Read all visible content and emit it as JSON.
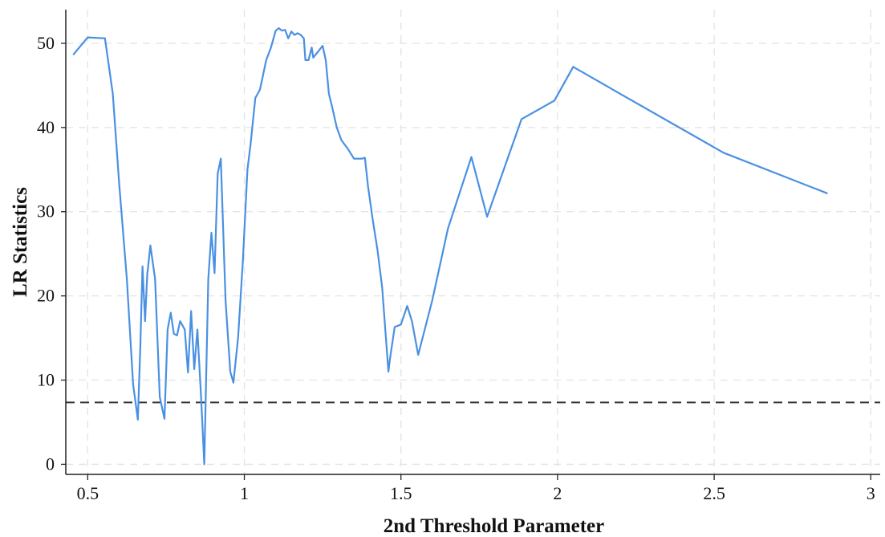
{
  "chart_data": {
    "type": "line",
    "xlabel": "2nd  Threshold Parameter",
    "ylabel": "LR Statistics",
    "xlim": [
      0.43,
      3.03
    ],
    "ylim": [
      -1.2,
      54
    ],
    "xticks": [
      0.5,
      1,
      1.5,
      2,
      2.5,
      3
    ],
    "xtick_labels": [
      "0.5",
      "1",
      "1.5",
      "2",
      "2.5",
      "3"
    ],
    "yticks": [
      0,
      10,
      20,
      30,
      40,
      50
    ],
    "ytick_labels": [
      "0",
      "10",
      "20",
      "30",
      "40",
      "50"
    ],
    "grid": true,
    "line_color": "#4a90e2",
    "reference_color": "#333333",
    "reference_line": {
      "y": 7.35,
      "style": "dashed"
    },
    "series": [
      {
        "x": [
          0.455,
          0.5,
          0.555,
          0.58,
          0.6,
          0.625,
          0.645,
          0.66,
          0.668,
          0.675,
          0.683,
          0.69,
          0.7,
          0.715,
          0.73,
          0.745,
          0.755,
          0.765,
          0.775,
          0.785,
          0.795,
          0.81,
          0.82,
          0.83,
          0.84,
          0.85,
          0.862,
          0.872,
          0.885,
          0.895,
          0.905,
          0.915,
          0.925,
          0.94,
          0.955,
          0.965,
          0.98,
          0.995,
          1.01,
          1.02,
          1.035,
          1.05,
          1.07,
          1.085,
          1.1,
          1.11,
          1.12,
          1.13,
          1.14,
          1.15,
          1.16,
          1.17,
          1.18,
          1.19,
          1.195,
          1.205,
          1.215,
          1.22,
          1.235,
          1.25,
          1.26,
          1.27,
          1.28,
          1.295,
          1.31,
          1.33,
          1.35,
          1.375,
          1.385,
          1.395,
          1.41,
          1.425,
          1.44,
          1.45,
          1.46,
          1.465,
          1.48,
          1.5,
          1.52,
          1.535,
          1.555,
          1.6,
          1.65,
          1.725,
          1.775,
          1.885,
          1.99,
          2.05,
          2.2,
          2.53,
          2.86
        ],
        "y": [
          48.7,
          50.7,
          50.6,
          44.0,
          33.5,
          22.0,
          9.5,
          5.3,
          14.0,
          23.5,
          17.0,
          22.5,
          26.0,
          22.0,
          8.0,
          5.4,
          16.0,
          18.0,
          15.5,
          15.3,
          17.0,
          16.0,
          10.9,
          18.2,
          11.3,
          16.0,
          8.0,
          0.0,
          22.0,
          27.5,
          22.7,
          34.5,
          36.3,
          19.5,
          11.0,
          9.7,
          15.0,
          24.0,
          35.0,
          38.0,
          43.5,
          44.5,
          48.0,
          49.5,
          51.5,
          51.8,
          51.5,
          51.6,
          50.6,
          51.4,
          51.0,
          51.2,
          51.0,
          50.6,
          48.0,
          48.0,
          49.5,
          48.3,
          49.0,
          49.7,
          48.0,
          44.0,
          42.5,
          40.0,
          38.5,
          37.5,
          36.3,
          36.3,
          36.4,
          33.0,
          29.0,
          25.5,
          21.0,
          16.0,
          11.0,
          12.5,
          16.3,
          16.6,
          18.8,
          17.0,
          13.0,
          19.5,
          28.0,
          36.5,
          29.4,
          41.0,
          43.2,
          47.2,
          44.0,
          37.0,
          32.2
        ]
      }
    ]
  }
}
